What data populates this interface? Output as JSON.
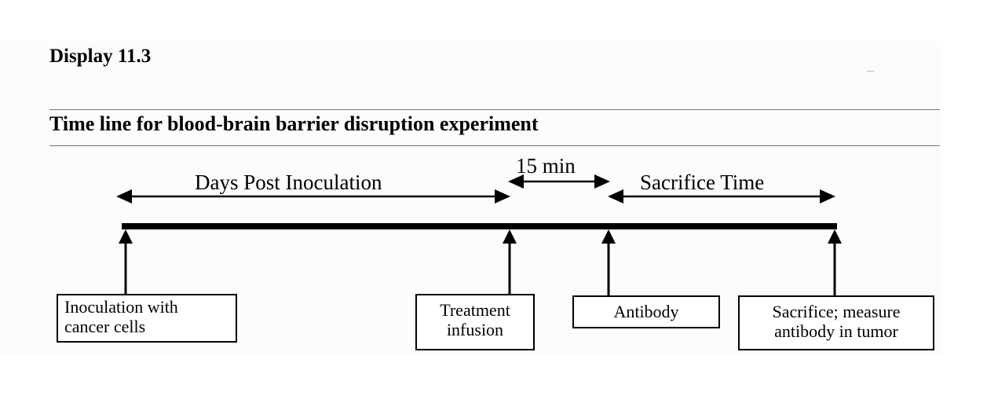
{
  "display_title": "Display 11.3",
  "subtitle": "Time line for blood-brain barrier disruption experiment",
  "spans": {
    "days_post_inoculation": "Days Post Inoculation",
    "fifteen_min": "15 min",
    "sacrifice_time": "Sacrifice Time"
  },
  "events": {
    "inoculation": {
      "line1": "Inoculation with",
      "line2": "cancer cells"
    },
    "treatment": {
      "line1": "Treatment",
      "line2": "infusion"
    },
    "antibody": {
      "line1": "Antibody"
    },
    "sacrifice": {
      "line1": "Sacrifice; measure",
      "line2": "antibody in tumor"
    }
  }
}
